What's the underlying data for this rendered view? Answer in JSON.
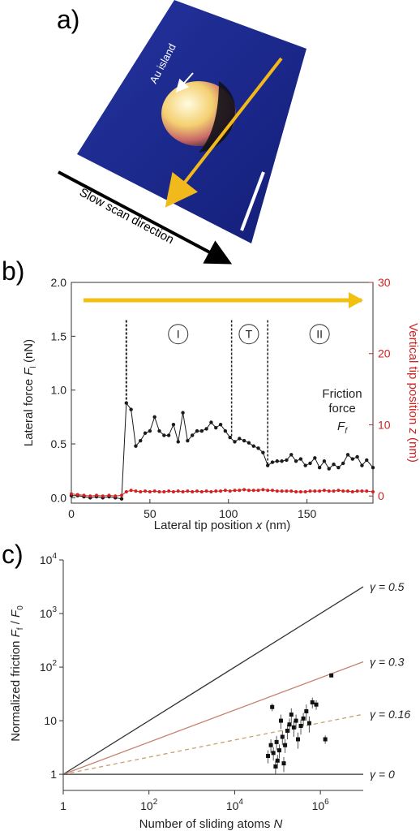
{
  "panel_labels": [
    "a)",
    "b)",
    "c)"
  ],
  "panel_a": {
    "island_label": "Au island",
    "scan_label": "Slow scan direction",
    "colors": {
      "substrate": "#1c2a8c",
      "scan_arrow": "#f2b91c",
      "scale_bar": "#ffffff"
    }
  },
  "chart_data": [
    {
      "type": "line",
      "panel": "b",
      "xlabel": "Lateral tip position x (nm)",
      "ylabel": "Lateral force Fl (nN)",
      "y2label": "Vertical tip position z (nm)",
      "xlim": [
        0,
        192
      ],
      "ylim": [
        -0.05,
        2.0
      ],
      "y2lim": [
        -1,
        30
      ],
      "xticks": [
        "0",
        "50",
        "100",
        "150"
      ],
      "yticks": [
        "0.0",
        "0.5",
        "1.0",
        "1.5",
        "2.0"
      ],
      "y2ticks": [
        "0",
        "10",
        "20",
        "30"
      ],
      "regions": [
        "I",
        "T",
        "II"
      ],
      "region_bounds": [
        35,
        102,
        125
      ],
      "annotation": [
        "Friction",
        "force",
        "Ff"
      ],
      "colors": {
        "force": "#1a1a1a",
        "height": "#d42020",
        "arrow": "#f2c010",
        "right_axis": "#d42020"
      },
      "series": [
        {
          "values_x": [
            0,
            4,
            8,
            12,
            16,
            20,
            24,
            28,
            32,
            35,
            38,
            41,
            44,
            47,
            50,
            53,
            56,
            59,
            62,
            65,
            68,
            71,
            74,
            77,
            80,
            83,
            86,
            89,
            92,
            95,
            98,
            101,
            104,
            107,
            110,
            113,
            116,
            119,
            122,
            125,
            128,
            131,
            134,
            137,
            140,
            143,
            146,
            149,
            152,
            155,
            158,
            161,
            164,
            167,
            170,
            173,
            176,
            179,
            182,
            185,
            188,
            192
          ],
          "values_y": [
            0.02,
            0.02,
            0.01,
            0.0,
            0.01,
            0.0,
            0.01,
            0.0,
            -0.01,
            0.88,
            0.82,
            0.48,
            0.53,
            0.6,
            0.62,
            0.75,
            0.62,
            0.58,
            0.58,
            0.68,
            0.52,
            0.79,
            0.53,
            0.58,
            0.62,
            0.62,
            0.64,
            0.7,
            0.65,
            0.68,
            0.62,
            0.56,
            0.52,
            0.55,
            0.53,
            0.51,
            0.48,
            0.46,
            0.42,
            0.3,
            0.33,
            0.34,
            0.34,
            0.35,
            0.4,
            0.34,
            0.36,
            0.3,
            0.32,
            0.37,
            0.28,
            0.34,
            0.27,
            0.31,
            0.28,
            0.32,
            0.4,
            0.36,
            0.38,
            0.3,
            0.35,
            0.28
          ]
        },
        {
          "values_x": [
            0,
            4,
            8,
            12,
            16,
            20,
            24,
            28,
            32,
            35,
            38,
            41,
            44,
            47,
            50,
            53,
            56,
            59,
            62,
            65,
            68,
            71,
            74,
            77,
            80,
            83,
            86,
            89,
            92,
            95,
            98,
            101,
            104,
            107,
            110,
            113,
            116,
            119,
            122,
            125,
            128,
            131,
            134,
            137,
            140,
            143,
            146,
            149,
            152,
            155,
            158,
            161,
            164,
            167,
            170,
            173,
            176,
            179,
            182,
            185,
            188,
            192
          ],
          "values_y": [
            0.3,
            0.2,
            0.1,
            0.0,
            0.1,
            0.0,
            0.1,
            0.0,
            0.1,
            0.6,
            0.8,
            0.7,
            0.6,
            0.7,
            0.6,
            0.7,
            0.6,
            0.6,
            0.7,
            0.6,
            0.7,
            0.6,
            0.7,
            0.6,
            0.7,
            0.6,
            0.7,
            0.6,
            0.7,
            0.7,
            0.8,
            0.7,
            0.8,
            0.8,
            0.9,
            0.8,
            0.8,
            0.8,
            0.9,
            0.8,
            0.8,
            0.7,
            0.7,
            0.7,
            0.7,
            0.6,
            0.6,
            0.6,
            0.7,
            0.7,
            0.7,
            0.8,
            0.7,
            0.7,
            0.8,
            0.7,
            0.7,
            0.6,
            0.7,
            0.7,
            0.7,
            0.6
          ]
        }
      ]
    },
    {
      "type": "scatter",
      "panel": "c",
      "xlabel": "Number of sliding atoms N",
      "ylabel": "Normalized friction Ff / F0",
      "x_scale": "log",
      "y_scale": "log",
      "xlim": [
        1,
        10000000
      ],
      "ylim": [
        0.5,
        10000
      ],
      "xtick_labels": [
        {
          "base": "1",
          "exp": ""
        },
        {
          "base": "10",
          "exp": "2"
        },
        {
          "base": "10",
          "exp": "4"
        },
        {
          "base": "10",
          "exp": "6"
        }
      ],
      "ytick_labels": [
        {
          "base": "1",
          "exp": ""
        },
        {
          "base": "10",
          "exp": ""
        },
        {
          "base": "10",
          "exp": "2"
        },
        {
          "base": "10",
          "exp": "3"
        },
        {
          "base": "10",
          "exp": "4"
        }
      ],
      "lines": [
        {
          "label": "γ = 0.5",
          "gamma": 0.5,
          "color": "#333333",
          "dashed": false
        },
        {
          "label": "γ = 0.3",
          "gamma": 0.3,
          "color": "#c88070",
          "dashed": false
        },
        {
          "label": "γ = 0.16",
          "gamma": 0.16,
          "color": "#c8a070",
          "dashed": true
        },
        {
          "label": "γ = 0",
          "gamma": 0,
          "color": "#333333",
          "dashed": false
        }
      ],
      "points": [
        {
          "x": 60000,
          "y": 2.2,
          "err": 0.6
        },
        {
          "x": 70000,
          "y": 3.5,
          "err": 1.0
        },
        {
          "x": 75000,
          "y": 18,
          "err": 3
        },
        {
          "x": 80000,
          "y": 2.5,
          "err": 0.7
        },
        {
          "x": 90000,
          "y": 1.4,
          "err": 0.4
        },
        {
          "x": 95000,
          "y": 4,
          "err": 1.2
        },
        {
          "x": 100000,
          "y": 1.8,
          "err": 0.5
        },
        {
          "x": 110000,
          "y": 2.8,
          "err": 0.8
        },
        {
          "x": 120000,
          "y": 10,
          "err": 3
        },
        {
          "x": 130000,
          "y": 5,
          "err": 1.5
        },
        {
          "x": 140000,
          "y": 1.6,
          "err": 0.5
        },
        {
          "x": 150000,
          "y": 3.5,
          "err": 1.0
        },
        {
          "x": 170000,
          "y": 6.5,
          "err": 2
        },
        {
          "x": 190000,
          "y": 8.5,
          "err": 2.5
        },
        {
          "x": 210000,
          "y": 13,
          "err": 4
        },
        {
          "x": 240000,
          "y": 7.5,
          "err": 2.5
        },
        {
          "x": 270000,
          "y": 10,
          "err": 3
        },
        {
          "x": 300000,
          "y": 4.5,
          "err": 1.5
        },
        {
          "x": 350000,
          "y": 8,
          "err": 2.5
        },
        {
          "x": 400000,
          "y": 11,
          "err": 3
        },
        {
          "x": 470000,
          "y": 15,
          "err": 5
        },
        {
          "x": 550000,
          "y": 9,
          "err": 3
        },
        {
          "x": 650000,
          "y": 22,
          "err": 5
        },
        {
          "x": 800000,
          "y": 20,
          "err": 4
        },
        {
          "x": 1300000,
          "y": 4.5,
          "err": 0.8
        },
        {
          "x": 1800000,
          "y": 70,
          "err": 3
        }
      ]
    }
  ]
}
